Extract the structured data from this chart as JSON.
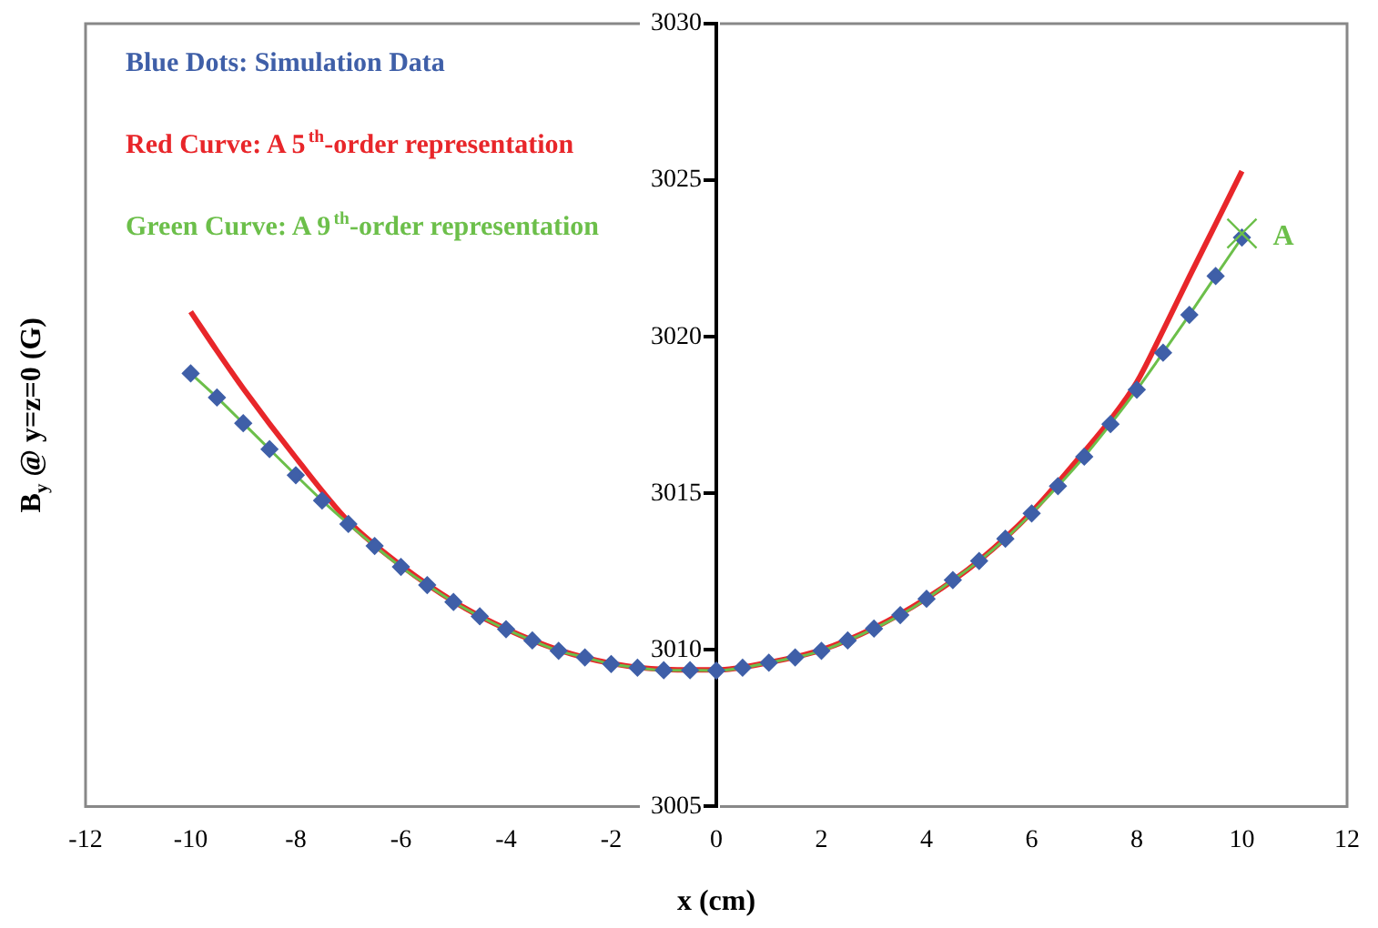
{
  "chart_data": {
    "type": "line",
    "xlabel": "x (cm)",
    "ylabel": "B$_{y}$ @ y=z=0 (G)",
    "xlim": [
      -12,
      12
    ],
    "xticks": [
      -12,
      -10,
      -8,
      -6,
      -4,
      -2,
      0,
      2,
      4,
      6,
      8,
      10,
      12
    ],
    "ylim": [
      3005,
      3030
    ],
    "yticks": [
      3005,
      3010,
      3015,
      3020,
      3025,
      3030
    ],
    "grid": false,
    "legend": "top left",
    "series": [
      {
        "name": "Blue Dots: Simulation Data",
        "type": "scatter",
        "marker": "diamond",
        "color": "#3f5fa8",
        "x": [
          -10,
          -9.5,
          -9,
          -8.5,
          -8,
          -7.5,
          -7,
          -6.5,
          -6,
          -5.5,
          -5,
          -4.5,
          -4,
          -3.5,
          -3,
          -2.5,
          -2,
          -1.5,
          -1,
          -0.5,
          0,
          0.5,
          1,
          1.5,
          2,
          2.5,
          3,
          3.5,
          4,
          4.5,
          5,
          5.5,
          6,
          6.5,
          7,
          7.5,
          8,
          8.5,
          9,
          9.5,
          10
        ],
        "values": [
          3018.83,
          3018.06,
          3017.24,
          3016.41,
          3015.58,
          3014.77,
          3014.02,
          3013.32,
          3012.65,
          3012.07,
          3011.53,
          3011.07,
          3010.66,
          3010.3,
          3009.97,
          3009.76,
          3009.55,
          3009.43,
          3009.35,
          3009.35,
          3009.34,
          3009.43,
          3009.59,
          3009.76,
          3009.97,
          3010.3,
          3010.68,
          3011.11,
          3011.63,
          3012.23,
          3012.84,
          3013.55,
          3014.36,
          3015.23,
          3016.17,
          3017.21,
          3018.31,
          3019.49,
          3020.7,
          3021.94,
          3023.17
        ]
      },
      {
        "name": "Red Curve: A 5$^{th}$-order representation",
        "marker": "none",
        "color": "#e8262a",
        "x": [
          -10,
          -9.5,
          -9,
          -8,
          -7,
          -6,
          -5,
          -4,
          -3,
          -2,
          -1,
          0,
          1,
          2,
          3,
          4,
          5,
          6,
          7,
          7.5,
          8,
          8.5,
          9,
          9.5,
          10
        ],
        "values": [
          3020.8,
          3019.55,
          3018.35,
          3016.14,
          3014.11,
          3012.7,
          3011.55,
          3010.67,
          3010.0,
          3009.57,
          3009.38,
          3009.36,
          3009.6,
          3010.0,
          3010.7,
          3011.65,
          3012.85,
          3014.4,
          3016.33,
          3017.35,
          3018.55,
          3020.2,
          3021.92,
          3023.6,
          3025.29
        ]
      },
      {
        "name": "Green Curve: A 9$^{th}$-order representation",
        "marker": "none",
        "color": "#6cbf4a",
        "x": [
          -10,
          -9.5,
          -9,
          -8.5,
          -8,
          -7.5,
          -7,
          -6.5,
          -6,
          -5.5,
          -5,
          -4.5,
          -4,
          -3.5,
          -3,
          -2.5,
          -2,
          -1.5,
          -1,
          -0.5,
          0,
          0.5,
          1,
          1.5,
          2,
          2.5,
          3,
          3.5,
          4,
          4.5,
          5,
          5.5,
          6,
          6.5,
          7,
          7.5,
          8,
          8.5,
          9,
          9.5,
          10
        ],
        "values": [
          3018.83,
          3018.06,
          3017.24,
          3016.41,
          3015.58,
          3014.77,
          3014.02,
          3013.32,
          3012.65,
          3012.07,
          3011.53,
          3011.07,
          3010.66,
          3010.3,
          3009.97,
          3009.76,
          3009.55,
          3009.43,
          3009.35,
          3009.35,
          3009.34,
          3009.43,
          3009.59,
          3009.76,
          3009.97,
          3010.3,
          3010.68,
          3011.11,
          3011.63,
          3012.23,
          3012.84,
          3013.55,
          3014.36,
          3015.23,
          3016.17,
          3017.21,
          3018.31,
          3019.49,
          3020.7,
          3021.94,
          3023.17
        ]
      }
    ],
    "annotations": [
      {
        "text": "A",
        "x": 10,
        "y": 3023.3
      }
    ]
  }
}
